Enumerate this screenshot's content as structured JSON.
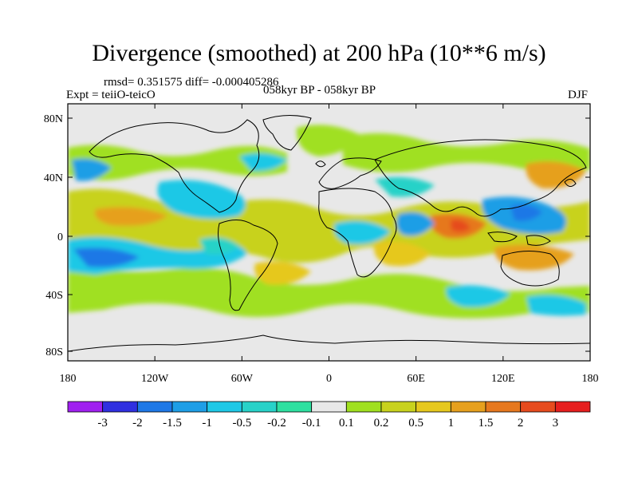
{
  "title": "Divergence (smoothed) at 200 hPa (10**6 m/s)",
  "stats_text": "rmsd= 0.351575 diff= -0.000405286",
  "experiment_text": "Expt = teiiO-teicO",
  "period_text": "058kyr BP - 058kyr BP",
  "season_text": "DJF",
  "axes": {
    "lat_labels": [
      "80N",
      "40N",
      "0",
      "40S",
      "80S"
    ],
    "lon_labels": [
      "180",
      "120W",
      "60W",
      "0",
      "60E",
      "120E",
      "180"
    ]
  },
  "colorbar": {
    "labels": [
      "-3",
      "-2",
      "-1.5",
      "-1",
      "-0.5",
      "-0.2",
      "-0.1",
      "0.1",
      "0.2",
      "0.5",
      "1",
      "1.5",
      "2",
      "3"
    ],
    "colors": [
      "#a020f0",
      "#3030e0",
      "#1e78e6",
      "#1e9ee6",
      "#1ec8e6",
      "#28d2c8",
      "#2ee0a0",
      "#e8e8e8",
      "#a0e020",
      "#c8d21e",
      "#e6c81e",
      "#e6a01e",
      "#e6781e",
      "#e64b1e",
      "#e61e1e"
    ]
  },
  "background_color": "#e8e8e8",
  "map_features": [
    "continent-outlines"
  ]
}
